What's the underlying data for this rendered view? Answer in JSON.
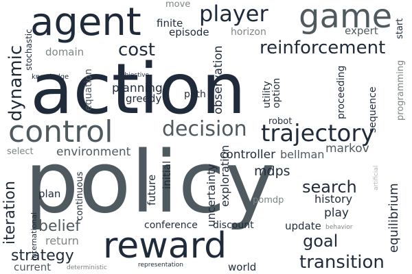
{
  "words": [
    "action",
    "policy",
    "reward",
    "control",
    "agent",
    "game",
    "trajectory",
    "decision",
    "player",
    "reinforcement",
    "cost",
    "dynamic",
    "transition",
    "iteration",
    "strategy",
    "search",
    "goal",
    "environment",
    "planning",
    "belief",
    "equilibrium",
    "observation",
    "mdps",
    "exploration",
    "uncertainty",
    "controller",
    "markov",
    "bellman",
    "history",
    "conference",
    "discount",
    "plan",
    "play",
    "update",
    "return",
    "utility",
    "option",
    "proceeding",
    "sequence",
    "programming",
    "path",
    "greedy",
    "domain",
    "stochastic",
    "finite",
    "episode",
    "horizon",
    "expert",
    "start",
    "move",
    "equation",
    "robot",
    "continuous",
    "initial",
    "future",
    "international",
    "current",
    "world",
    "select",
    "pomdp",
    "artificial",
    "knowledge",
    "objective",
    "deterministic",
    "representation",
    "behavior"
  ],
  "colors": {
    "navy": "#1f2b3a",
    "slate": "#4f5a60",
    "gray": "#7d8584",
    "light": "#b4b7b5",
    "background": "#ffffff"
  }
}
